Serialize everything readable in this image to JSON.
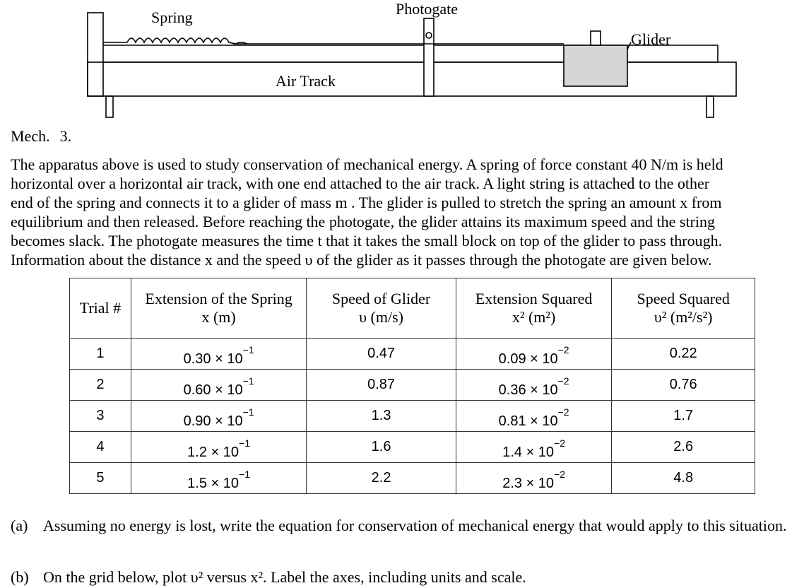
{
  "diagram": {
    "spring_label": "Spring",
    "photogate_label": "Photogate",
    "glider_label": "Glider",
    "track_label": "Air Track"
  },
  "problem": {
    "heading": "Mech.",
    "number": "3.",
    "intro": [
      "The apparatus above is used to study conservation of mechanical energy. A spring of force constant 40 N/m is held",
      "horizontal over a horizontal air track, with one end attached to the air track. A light string is attached to the other",
      "end of the spring and connects it to a glider of mass m . The glider is pulled to stretch the spring an amount x from",
      "equilibrium and then released. Before reaching the photogate, the glider attains its maximum speed and the string",
      "becomes slack. The photogate measures the time t that it takes the small block on top of the glider to pass through.",
      "Information about the distance x and the speed υ of the glider as it passes through the photogate are given below."
    ]
  },
  "table": {
    "headers": [
      {
        "line1": "Trial #",
        "line2": ""
      },
      {
        "line1": "Extension of the Spring",
        "line2": "x (m)"
      },
      {
        "line1": "Speed of Glider",
        "line2": "υ (m/s)"
      },
      {
        "line1": "Extension Squared",
        "line2": "x² (m²)"
      },
      {
        "line1": "Speed Squared",
        "line2": "υ² (m²/s²)"
      }
    ],
    "rows": [
      {
        "trial": "1",
        "x_mant": "0.30 × 10",
        "x_exp": "−1",
        "v": "0.47",
        "x2_mant": "0.09 × 10",
        "x2_exp": "−2",
        "v2": "0.22"
      },
      {
        "trial": "2",
        "x_mant": "0.60 × 10",
        "x_exp": "−1",
        "v": "0.87",
        "x2_mant": "0.36 × 10",
        "x2_exp": "−2",
        "v2": "0.76"
      },
      {
        "trial": "3",
        "x_mant": "0.90 × 10",
        "x_exp": "−1",
        "v": "1.3",
        "x2_mant": "0.81 × 10",
        "x2_exp": "−2",
        "v2": "1.7"
      },
      {
        "trial": "4",
        "x_mant": "1.2 × 10",
        "x_exp": "−1",
        "v": "1.6",
        "x2_mant": "1.4 × 10",
        "x2_exp": "−2",
        "v2": "2.6"
      },
      {
        "trial": "5",
        "x_mant": "1.5 × 10",
        "x_exp": "−1",
        "v": "2.2",
        "x2_mant": "2.3 × 10",
        "x2_exp": "−2",
        "v2": "4.8"
      }
    ]
  },
  "questions": [
    {
      "tag": "(a)",
      "text": "Assuming no energy is lost, write the equation for conservation of mechanical energy that would apply to this situation."
    },
    {
      "tag": "(b)",
      "text": "On the grid below, plot υ² versus x². Label the axes, including units and scale."
    }
  ]
}
